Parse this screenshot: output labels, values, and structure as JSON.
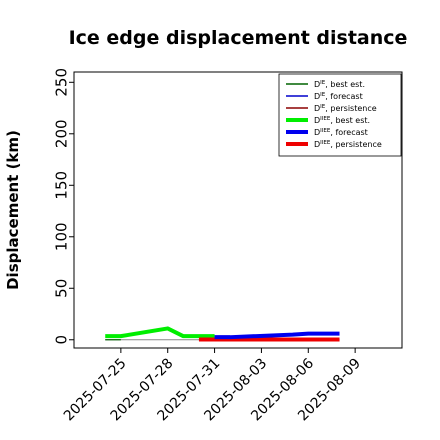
{
  "chart_data": {
    "type": "line",
    "title": "Ice edge displacement distance",
    "ylabel": "Displacement (km)",
    "xlabel": "",
    "ylim": [
      -8,
      260
    ],
    "yticks": [
      0,
      50,
      100,
      150,
      200,
      250
    ],
    "xlim": [
      "2025-07-22",
      "2025-08-12"
    ],
    "xticks": [
      "2025-07-25",
      "2025-07-28",
      "2025-07-31",
      "2025-08-03",
      "2025-08-06",
      "2025-08-09"
    ],
    "xtick_colors": [
      "#000000",
      "#000000",
      "#228B22",
      "#000000",
      "#000000",
      "#000000"
    ],
    "legend_position": "top-right",
    "grid": false,
    "series": [
      {
        "name": "D^IE, best est.",
        "color": "#006400",
        "width": 1.2,
        "points": [
          [
            "2025-07-24",
            0
          ],
          [
            "2025-07-25",
            0
          ]
        ]
      },
      {
        "name": "D^IE, forecast",
        "color": "#0000cc",
        "width": 1.2,
        "points": [
          [
            "2025-07-31",
            0
          ],
          [
            "2025-08-08",
            0
          ]
        ]
      },
      {
        "name": "D^IE, persistence",
        "color": "#8b0000",
        "width": 1.2,
        "points": [
          [
            "2025-07-30",
            0
          ],
          [
            "2025-08-08",
            0
          ]
        ]
      },
      {
        "name": "D^IIEE, best est.",
        "color": "#00ee00",
        "width": 4,
        "points": [
          [
            "2025-07-24",
            3.5
          ],
          [
            "2025-07-25",
            3.5
          ],
          [
            "2025-07-28",
            11
          ],
          [
            "2025-07-29",
            3.5
          ],
          [
            "2025-07-31",
            3.5
          ]
        ]
      },
      {
        "name": "D^IIEE, forecast",
        "color": "#0000ee",
        "width": 4,
        "points": [
          [
            "2025-07-31",
            2.5
          ],
          [
            "2025-08-01",
            2.5
          ],
          [
            "2025-08-05",
            5
          ],
          [
            "2025-08-06",
            6
          ],
          [
            "2025-08-08",
            6
          ]
        ]
      },
      {
        "name": "D^IIEE, persistence",
        "color": "#ee0000",
        "width": 4,
        "points": [
          [
            "2025-07-30",
            0.3
          ],
          [
            "2025-08-08",
            0.3
          ]
        ]
      }
    ],
    "gray_baseline": {
      "color": "#888888",
      "points": [
        [
          "2025-07-24",
          0
        ],
        [
          "2025-08-08",
          0
        ]
      ]
    }
  },
  "legend": [
    {
      "base": "D",
      "sup": "IE",
      "rest": ", best est."
    },
    {
      "base": "D",
      "sup": "IE",
      "rest": ", forecast"
    },
    {
      "base": "D",
      "sup": "IE",
      "rest": ", persistence"
    },
    {
      "base": "D",
      "sup": "IIEE",
      "rest": ", best est."
    },
    {
      "base": "D",
      "sup": "IIEE",
      "rest": ", forecast"
    },
    {
      "base": "D",
      "sup": "IIEE",
      "rest": ", persistence"
    }
  ]
}
